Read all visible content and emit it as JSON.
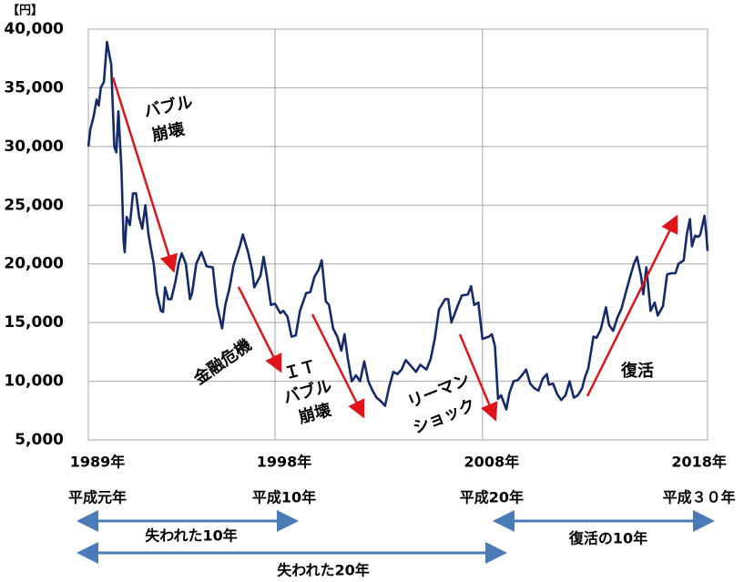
{
  "chart_data": {
    "type": "line",
    "y_unit": "【円】",
    "x": [
      1989.0,
      1989.1,
      1989.25,
      1989.4,
      1989.5,
      1989.6,
      1989.75,
      1989.9,
      1990.1,
      1990.25,
      1990.35,
      1990.45,
      1990.6,
      1990.7,
      1990.75,
      1990.85,
      1991.0,
      1991.15,
      1991.3,
      1991.45,
      1991.6,
      1991.75,
      1991.9,
      1992.0,
      1992.15,
      1992.3,
      1992.5,
      1992.6,
      1992.7,
      1992.85,
      1993.0,
      1993.2,
      1993.35,
      1993.5,
      1993.7,
      1993.9,
      1994.0,
      1994.2,
      1994.45,
      1994.7,
      1995.0,
      1995.2,
      1995.45,
      1995.6,
      1995.8,
      1996.0,
      1996.3,
      1996.45,
      1996.7,
      1996.9,
      1997.0,
      1997.3,
      1997.45,
      1997.6,
      1997.8,
      1998.0,
      1998.25,
      1998.4,
      1998.6,
      1998.8,
      1999.0,
      1999.2,
      1999.5,
      1999.7,
      1999.9,
      2000.1,
      2000.25,
      2000.45,
      2000.6,
      2000.8,
      2001.0,
      2001.2,
      2001.35,
      2001.5,
      2001.7,
      2001.9,
      2002.1,
      2002.3,
      2002.5,
      2002.7,
      2002.9,
      2003.1,
      2003.3,
      2003.5,
      2003.7,
      2003.9,
      2004.1,
      2004.3,
      2004.5,
      2004.8,
      2005.0,
      2005.3,
      2005.5,
      2005.7,
      2005.9,
      2006.2,
      2006.35,
      2006.5,
      2006.8,
      2007.0,
      2007.3,
      2007.45,
      2007.6,
      2007.8,
      2008.0,
      2008.3,
      2008.45,
      2008.6,
      2008.75,
      2008.9,
      2009.15,
      2009.3,
      2009.5,
      2009.7,
      2009.9,
      2010.1,
      2010.3,
      2010.5,
      2010.7,
      2010.9,
      2011.1,
      2011.2,
      2011.4,
      2011.6,
      2011.8,
      2012.0,
      2012.2,
      2012.4,
      2012.6,
      2012.8,
      2012.95,
      2013.1,
      2013.35,
      2013.5,
      2013.7,
      2013.95,
      2014.1,
      2014.3,
      2014.5,
      2014.7,
      2014.9,
      2015.1,
      2015.3,
      2015.45,
      2015.65,
      2015.75,
      2015.9,
      2016.1,
      2016.3,
      2016.45,
      2016.7,
      2016.9,
      2017.1,
      2017.3,
      2017.45,
      2017.7,
      2017.85,
      2018.0,
      2018.1,
      2018.25,
      2018.4,
      2018.5,
      2018.7,
      2018.8,
      2018.85
    ],
    "values": [
      30000,
      31500,
      32500,
      34000,
      33500,
      35000,
      35500,
      38900,
      37000,
      30000,
      29500,
      33000,
      28000,
      22000,
      21000,
      24000,
      23300,
      26000,
      26000,
      24000,
      23000,
      25000,
      22500,
      21500,
      20000,
      17500,
      16000,
      15900,
      18000,
      17000,
      17000,
      18500,
      20000,
      20900,
      20000,
      17000,
      17500,
      20000,
      21000,
      19800,
      19700,
      16500,
      14500,
      16500,
      17900,
      19900,
      21500,
      22500,
      21000,
      19400,
      18000,
      19000,
      20600,
      19000,
      16500,
      16600,
      15800,
      16000,
      15500,
      13800,
      13900,
      16000,
      17500,
      17600,
      18900,
      19500,
      20300,
      16800,
      16500,
      14500,
      13800,
      12600,
      14000,
      12000,
      10000,
      10500,
      10000,
      11700,
      10000,
      9200,
      8600,
      8300,
      7900,
      9500,
      10800,
      10600,
      11000,
      11800,
      11400,
      10800,
      11400,
      11000,
      11900,
      13600,
      16100,
      17000,
      17000,
      15000,
      16400,
      17300,
      17400,
      18100,
      16500,
      16700,
      13600,
      13800,
      14000,
      13000,
      8500,
      8800,
      7600,
      9000,
      10000,
      10100,
      10500,
      11000,
      9800,
      9400,
      9200,
      10200,
      10600,
      9700,
      9800,
      8900,
      8400,
      8800,
      10000,
      8600,
      8800,
      9400,
      10400,
      11100,
      13800,
      13700,
      14400,
      16300,
      14800,
      14300,
      15400,
      16200,
      17500,
      18800,
      20000,
      20600,
      18900,
      17400,
      19700,
      16000,
      16700,
      15600,
      16400,
      19100,
      19200,
      19200,
      20000,
      20300,
      22500,
      23800,
      21500,
      22400,
      22300,
      22500,
      24100,
      22300,
      21100
    ],
    "color": "#142a6b",
    "xlim": [
      1989,
      2018.85
    ],
    "ylim": [
      5000,
      40000
    ],
    "yticks": [
      {
        "value": 5000,
        "label": "5,000"
      },
      {
        "value": 10000,
        "label": "10,000"
      },
      {
        "value": 15000,
        "label": "15,000"
      },
      {
        "value": 20000,
        "label": "20,000"
      },
      {
        "value": 25000,
        "label": "25,000"
      },
      {
        "value": 30000,
        "label": "30,000"
      },
      {
        "value": 35000,
        "label": "35,000"
      },
      {
        "value": 40000,
        "label": "40,000"
      }
    ],
    "xticks": [
      {
        "value": 1989,
        "label": "1989年"
      },
      {
        "value": 1998,
        "label": "1998年"
      },
      {
        "value": 2008,
        "label": "2008年"
      },
      {
        "value": 2018,
        "label": "2018年"
      }
    ],
    "x_era_labels": [
      "平成元年",
      "平成10年",
      "平成20年",
      "平成３０年"
    ],
    "grid": true,
    "annotations": [
      {
        "lines": [
          "バブル",
          "崩壊"
        ]
      },
      {
        "lines": [
          "金融危機"
        ]
      },
      {
        "lines": [
          "ＩＴ",
          "バブル",
          "崩壊"
        ]
      },
      {
        "lines": [
          "リーマン",
          "ショック"
        ]
      },
      {
        "lines": [
          "復活"
        ]
      }
    ],
    "periods": [
      "失われた10年",
      "失われた20年",
      "復活の10年"
    ]
  }
}
